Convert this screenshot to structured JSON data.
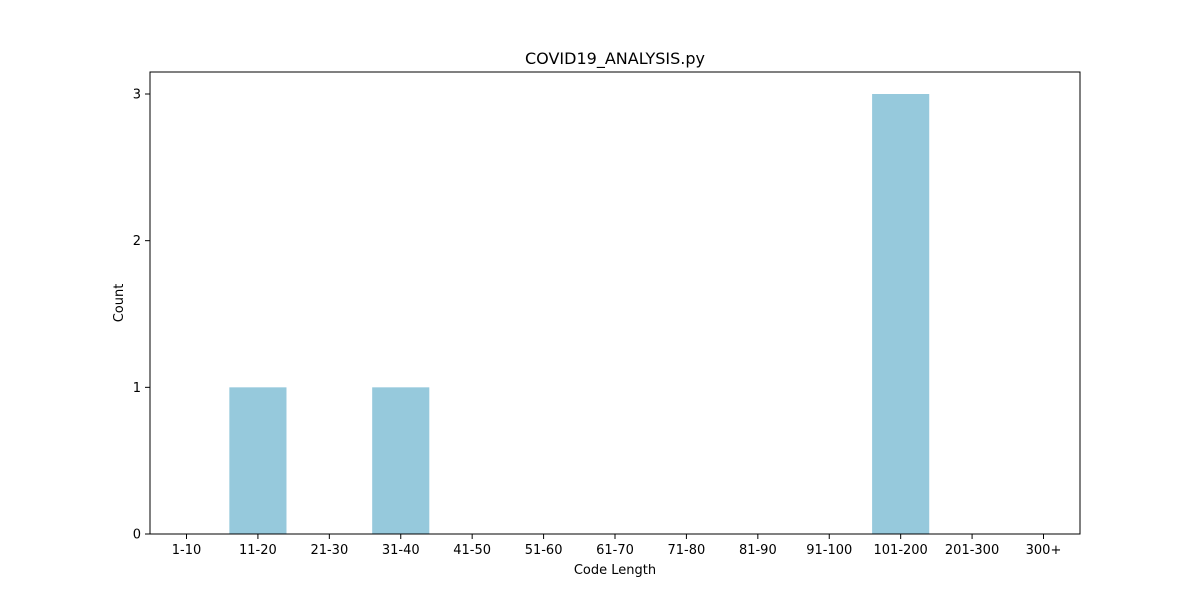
{
  "chart_data": {
    "type": "bar",
    "title": "COVID19_ANALYSIS.py",
    "xlabel": "Code Length",
    "ylabel": "Count",
    "categories": [
      "1-10",
      "11-20",
      "21-30",
      "31-40",
      "41-50",
      "51-60",
      "61-70",
      "71-80",
      "81-90",
      "91-100",
      "101-200",
      "201-300",
      "300+"
    ],
    "values": [
      0,
      1,
      0,
      1,
      0,
      0,
      0,
      0,
      0,
      0,
      3,
      0,
      0
    ],
    "yticks": [
      0,
      1,
      2,
      3
    ],
    "ylim": [
      0,
      3.15
    ],
    "grid": false,
    "bar_color": "#96c9dc"
  }
}
